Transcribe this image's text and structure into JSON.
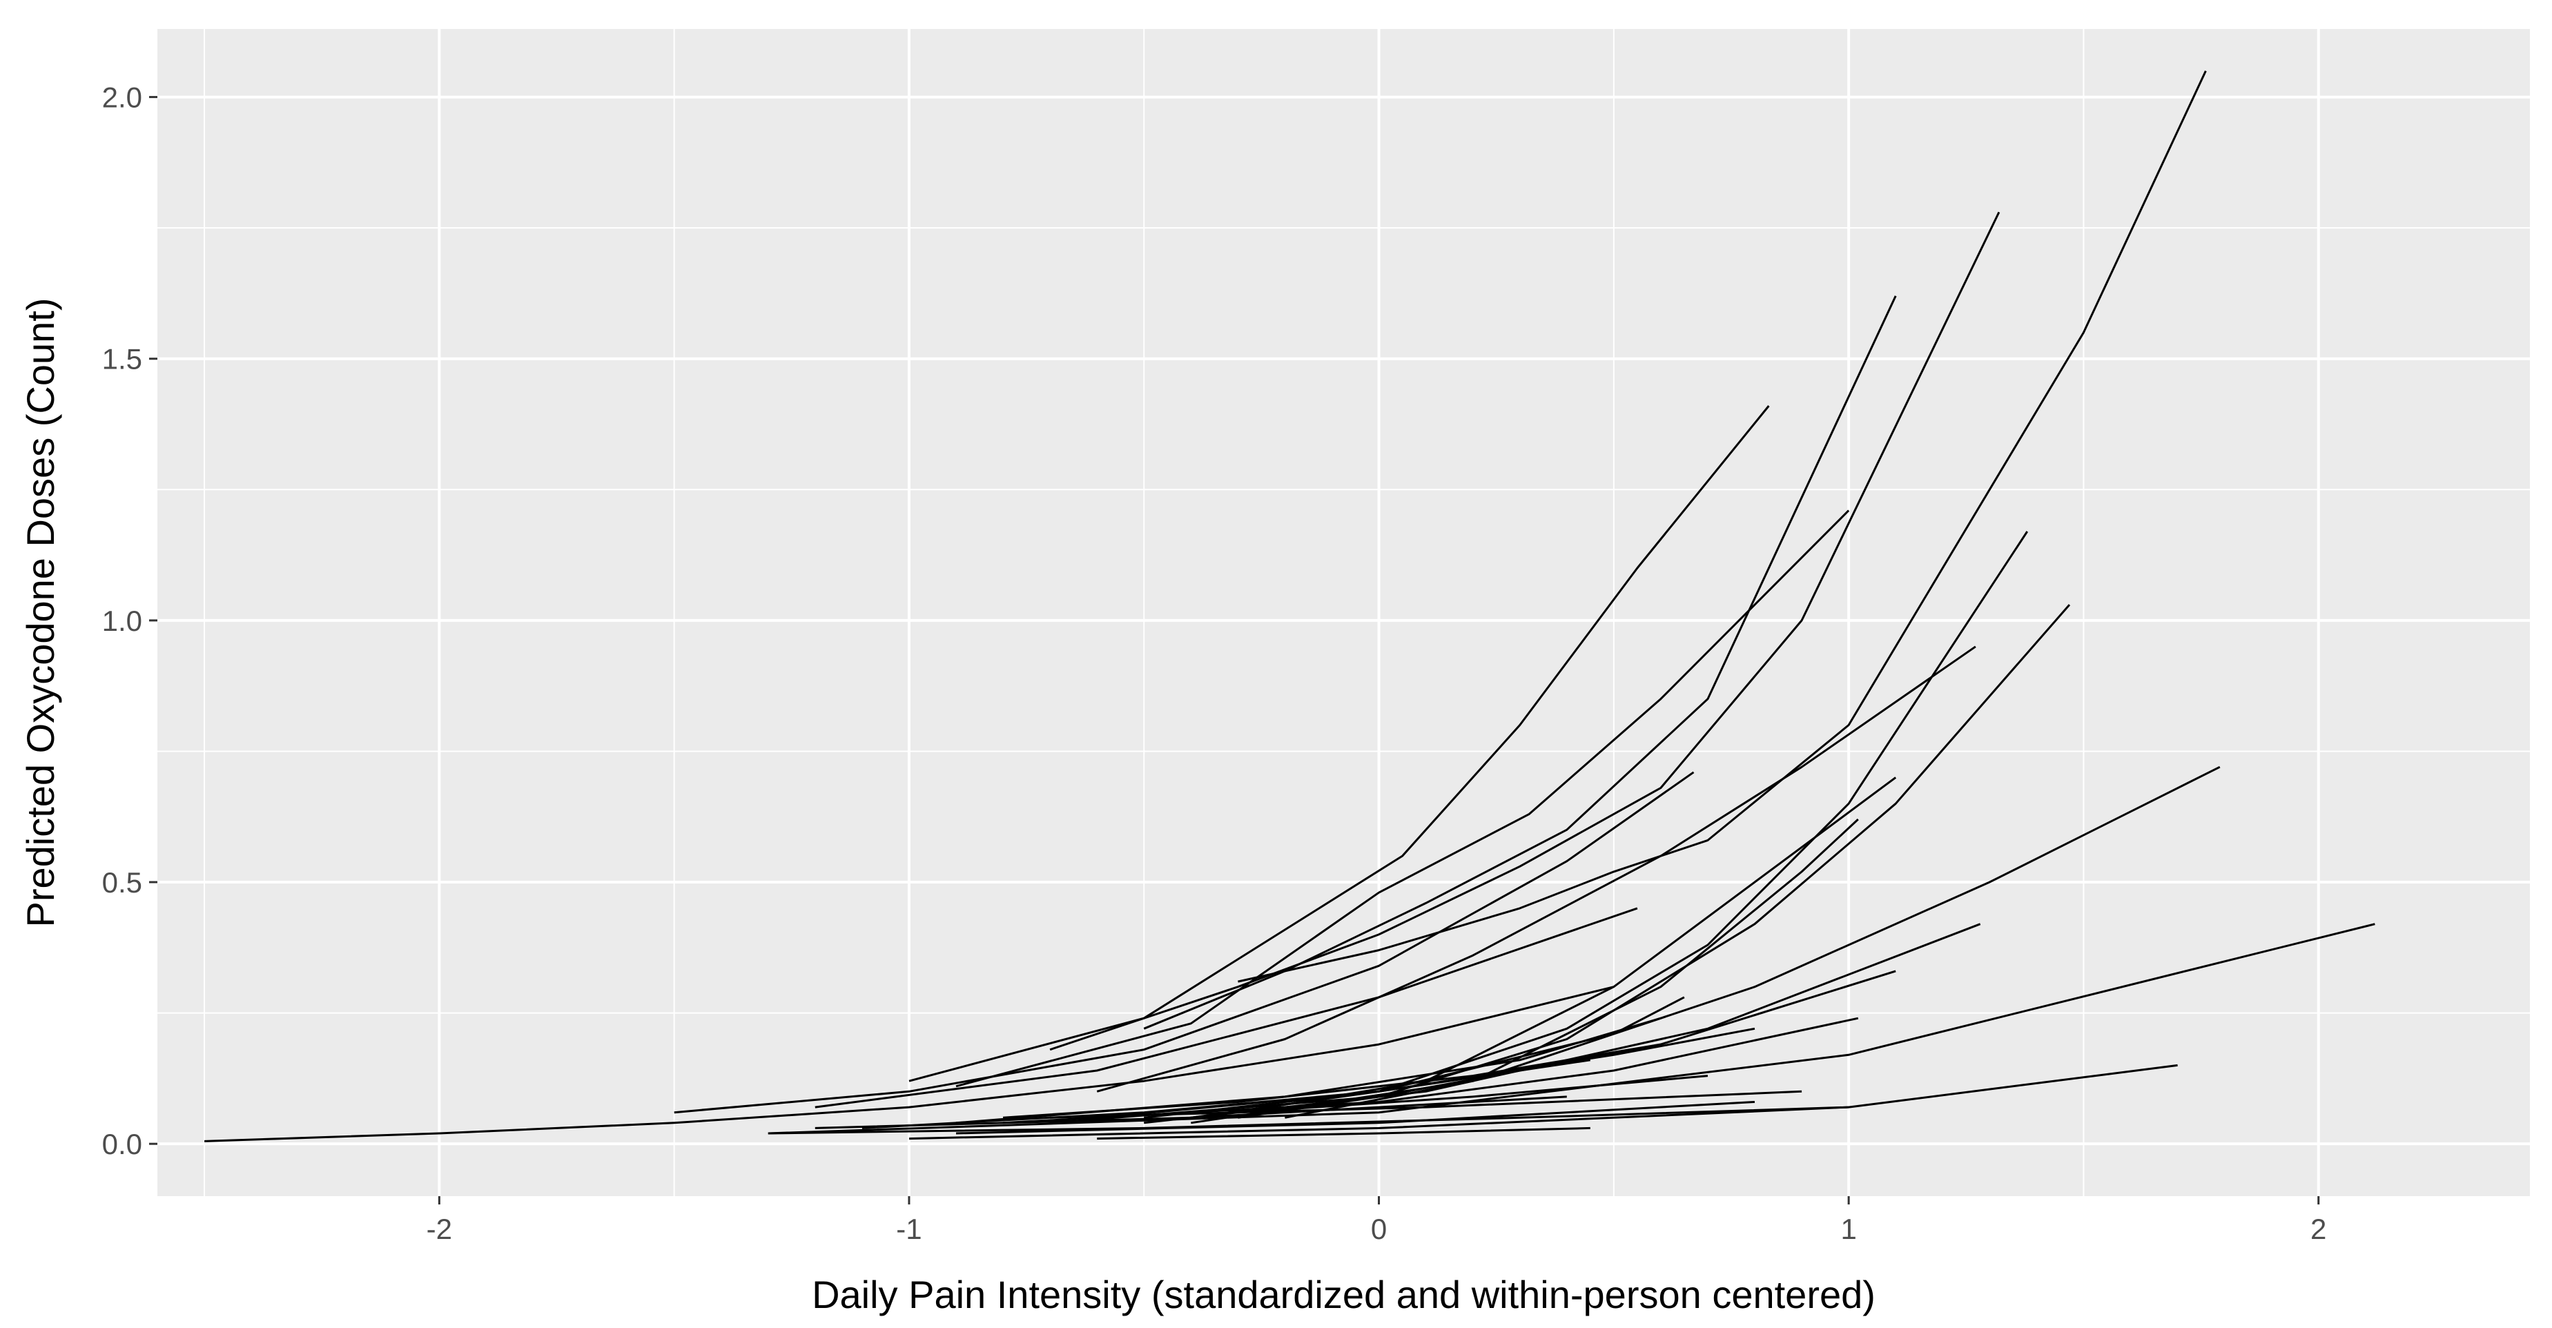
{
  "chart_data": {
    "type": "line",
    "title": "",
    "xlabel": "Daily Pain Intensity (standardized and within-person centered)",
    "ylabel": "Predicted Oxycodone Doses (Count)",
    "xlim": [
      -2.6,
      2.45
    ],
    "ylim": [
      -0.1,
      2.13
    ],
    "x_ticks": [
      -2,
      -1,
      0,
      1,
      2
    ],
    "x_tick_labels": [
      "-2",
      "-1",
      "0",
      "1",
      "2"
    ],
    "y_ticks": [
      0.0,
      0.5,
      1.0,
      1.5,
      2.0
    ],
    "y_tick_labels": [
      "0.0",
      "0.5",
      "1.0",
      "1.5",
      "2.0"
    ],
    "grid": true,
    "background": "#ebebeb",
    "line_color": "#000000",
    "series": [
      {
        "x": [
          -0.3,
          0.0,
          0.3,
          0.5,
          0.7,
          1.0,
          1.5,
          1.76
        ],
        "y": [
          0.31,
          0.37,
          0.45,
          0.52,
          0.58,
          0.8,
          1.55,
          2.05
        ]
      },
      {
        "x": [
          -0.7,
          -0.3,
          0.0,
          0.3,
          0.6,
          0.9,
          1.32
        ],
        "y": [
          0.18,
          0.3,
          0.4,
          0.53,
          0.68,
          1.0,
          1.78
        ]
      },
      {
        "x": [
          -0.5,
          -0.2,
          0.1,
          0.4,
          0.7,
          1.1
        ],
        "y": [
          0.22,
          0.33,
          0.46,
          0.6,
          0.85,
          1.62
        ]
      },
      {
        "x": [
          -1.0,
          -0.5,
          0.05,
          0.3,
          0.55,
          0.83
        ],
        "y": [
          0.12,
          0.24,
          0.55,
          0.8,
          1.1,
          1.41
        ]
      },
      {
        "x": [
          -0.9,
          -0.4,
          0.0,
          0.32,
          0.6,
          1.0
        ],
        "y": [
          0.11,
          0.23,
          0.48,
          0.63,
          0.85,
          1.21
        ]
      },
      {
        "x": [
          -0.4,
          0.0,
          0.4,
          0.7,
          1.0,
          1.38
        ],
        "y": [
          0.05,
          0.1,
          0.22,
          0.38,
          0.65,
          1.17
        ]
      },
      {
        "x": [
          -0.3,
          0.0,
          0.4,
          0.8,
          1.1,
          1.47
        ],
        "y": [
          0.05,
          0.09,
          0.2,
          0.42,
          0.65,
          1.03
        ]
      },
      {
        "x": [
          -0.6,
          -0.2,
          0.2,
          0.6,
          0.9,
          1.27
        ],
        "y": [
          0.1,
          0.2,
          0.36,
          0.55,
          0.72,
          0.95
        ]
      },
      {
        "x": [
          -1.5,
          -1.0,
          -0.5,
          0.0,
          0.4,
          0.67
        ],
        "y": [
          0.06,
          0.1,
          0.18,
          0.34,
          0.54,
          0.71
        ]
      },
      {
        "x": [
          -0.3,
          0.1,
          0.5,
          0.8,
          1.1
        ],
        "y": [
          0.06,
          0.12,
          0.3,
          0.5,
          0.7
        ]
      },
      {
        "x": [
          -0.2,
          0.2,
          0.6,
          0.9,
          1.02
        ],
        "y": [
          0.05,
          0.12,
          0.3,
          0.52,
          0.62
        ]
      },
      {
        "x": [
          -1.2,
          -0.6,
          0.0,
          0.55
        ],
        "y": [
          0.07,
          0.14,
          0.28,
          0.45
        ]
      },
      {
        "x": [
          -0.4,
          0.2,
          0.8,
          1.3,
          1.79
        ],
        "y": [
          0.04,
          0.12,
          0.3,
          0.5,
          0.72
        ]
      },
      {
        "x": [
          -0.5,
          0.1,
          0.7,
          1.28
        ],
        "y": [
          0.04,
          0.1,
          0.22,
          0.42
        ]
      },
      {
        "x": [
          -0.7,
          0.0,
          0.6,
          1.1
        ],
        "y": [
          0.04,
          0.09,
          0.19,
          0.33
        ]
      },
      {
        "x": [
          -0.8,
          0.0,
          0.5,
          1.02
        ],
        "y": [
          0.04,
          0.08,
          0.14,
          0.24
        ]
      },
      {
        "x": [
          -0.6,
          0.0,
          0.5,
          0.65
        ],
        "y": [
          0.05,
          0.1,
          0.21,
          0.28
        ]
      },
      {
        "x": [
          -0.9,
          -0.2,
          0.3,
          0.6
        ],
        "y": [
          0.04,
          0.09,
          0.16,
          0.24
        ]
      },
      {
        "x": [
          -1.3,
          0.0,
          1.0,
          2.12
        ],
        "y": [
          0.02,
          0.06,
          0.17,
          0.42
        ]
      },
      {
        "x": [
          -1.0,
          0.0,
          1.0,
          1.7
        ],
        "y": [
          0.01,
          0.03,
          0.07,
          0.15
        ]
      },
      {
        "x": [
          -2.5,
          -2.0,
          -1.5,
          -1.0,
          -0.5,
          0.0,
          0.5
        ],
        "y": [
          0.005,
          0.02,
          0.04,
          0.07,
          0.12,
          0.19,
          0.3
        ]
      },
      {
        "x": [
          -1.1,
          -0.5,
          0.0,
          0.45
        ],
        "y": [
          0.03,
          0.06,
          0.1,
          0.16
        ]
      },
      {
        "x": [
          -0.8,
          -0.3,
          0.2,
          0.6
        ],
        "y": [
          0.05,
          0.08,
          0.13,
          0.19
        ]
      },
      {
        "x": [
          -0.5,
          0.0,
          0.5,
          0.8
        ],
        "y": [
          0.05,
          0.1,
          0.17,
          0.22
        ]
      },
      {
        "x": [
          -1.3,
          -0.5,
          0.3,
          1.0
        ],
        "y": [
          0.02,
          0.03,
          0.05,
          0.07
        ]
      },
      {
        "x": [
          -0.9,
          0.0,
          0.8
        ],
        "y": [
          0.02,
          0.04,
          0.08
        ]
      },
      {
        "x": [
          -0.6,
          0.0,
          0.45
        ],
        "y": [
          0.01,
          0.02,
          0.03
        ]
      },
      {
        "x": [
          -1.2,
          -0.4,
          0.4
        ],
        "y": [
          0.03,
          0.05,
          0.09
        ]
      },
      {
        "x": [
          -0.3,
          0.2,
          0.7
        ],
        "y": [
          0.06,
          0.09,
          0.13
        ]
      },
      {
        "x": [
          -0.7,
          0.1,
          0.9
        ],
        "y": [
          0.05,
          0.07,
          0.1
        ]
      }
    ]
  }
}
